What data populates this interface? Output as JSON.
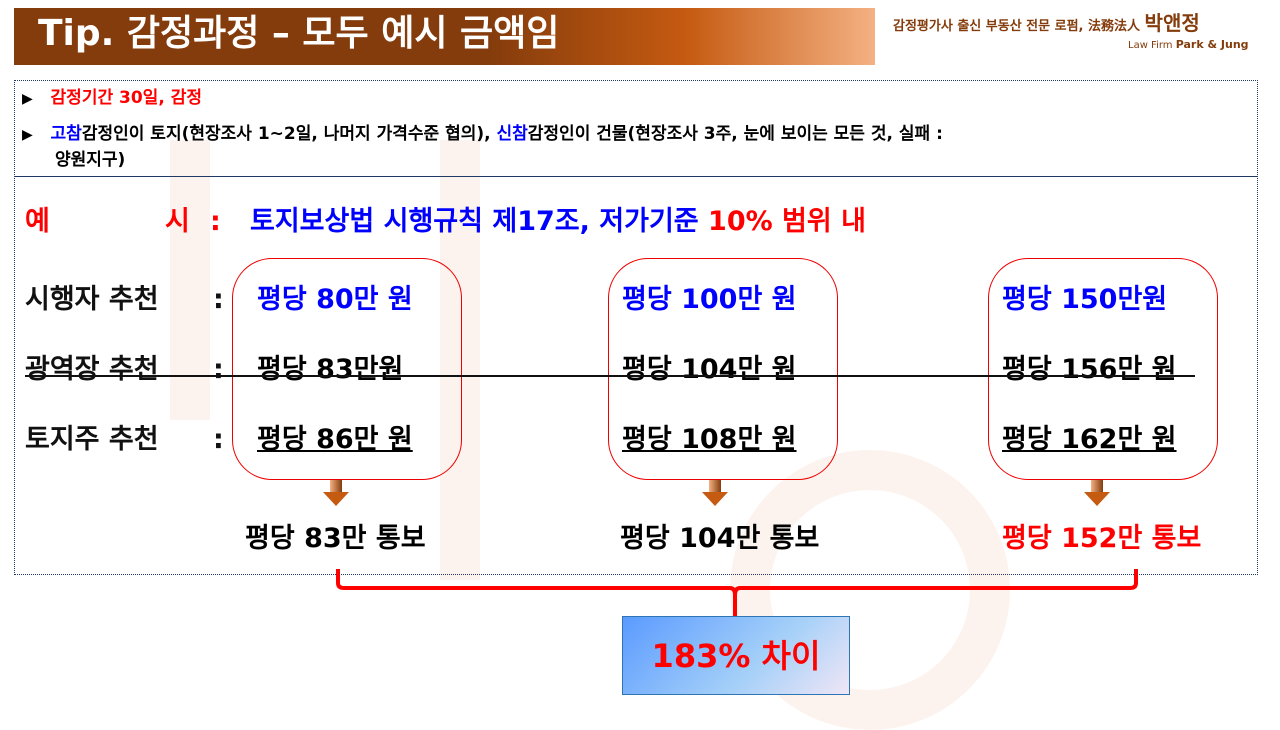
{
  "header": {
    "title": "Tip. 감정과정 – 모두 예시 금액임",
    "brand_tagline": "감정평가사 출신 부동산 전문 로펌, 法務法人",
    "brand_name": "박앤정",
    "brand_en_prefix": "Law Firm",
    "brand_en": "Park & Jung"
  },
  "bullets": [
    {
      "text": "감정기간 30일, 감정"
    },
    {
      "part1": "고참",
      "part2": "감정인이 토지(현장조사 1~2일, 나머지 가격수준 협의), ",
      "part3": "신참",
      "part4": "감정인이 건물(현장조사 3주, 눈에 보이는 모든 것, 실패 :",
      "part5": "양원지구)"
    }
  ],
  "example": {
    "label_a": "예",
    "label_b": "시",
    "colon": ":",
    "text": "토지보상법 시행규칙 제17조, 저가기준 ",
    "highlight": "10% 범위 내"
  },
  "rows": [
    {
      "label": "시행자 추천",
      "colon": ":",
      "values": [
        "평당 80만 원",
        "평당 100만 원",
        "평당 150만원"
      ]
    },
    {
      "label": "광역장 추천",
      "colon": ":",
      "values": [
        "평당 83만원",
        "평당 104만 원",
        "평당 156만 원"
      ]
    },
    {
      "label": "토지주 추천",
      "colon": ":",
      "values": [
        "평당 86만 원",
        "평당 108만 원",
        "평당 162만 원"
      ]
    }
  ],
  "results": [
    "평당 83만 통보",
    "평당 104만 통보",
    "평당 152만 통보"
  ],
  "summary": "183% 차이",
  "colors": {
    "accent_red": "#ff0000",
    "accent_blue": "#0000ff",
    "title_brown": "#843c0c"
  }
}
